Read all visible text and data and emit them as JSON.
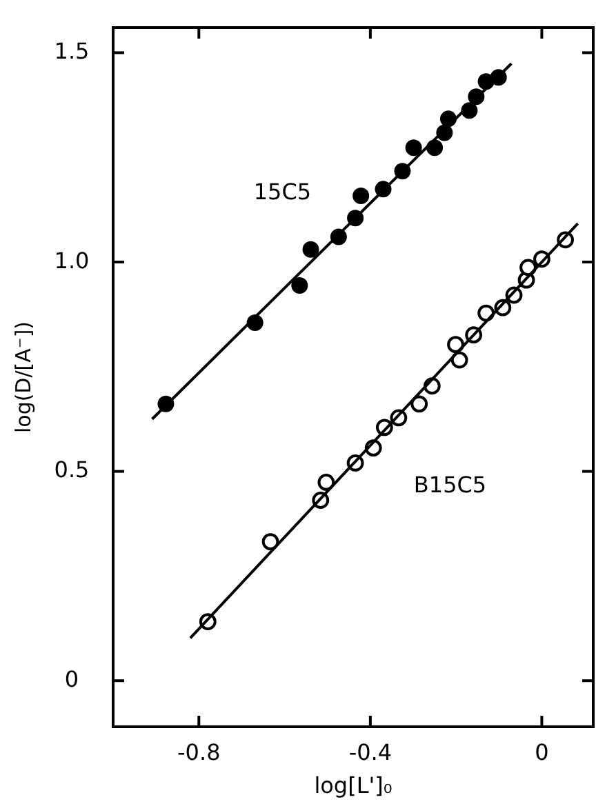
{
  "chart_data": {
    "type": "scatter",
    "xlabel": "log[L']₀",
    "ylabel": "log(D/[A⁻])",
    "xlim": [
      -1.0,
      0.12
    ],
    "ylim": [
      -0.11,
      1.56
    ],
    "xticks": [
      -0.8,
      -0.4,
      0
    ],
    "yticks": [
      0,
      0.5,
      {
        "value": 1,
        "label": "1.0"
      },
      1.5
    ],
    "grid": false,
    "series": [
      {
        "name": "15C5",
        "color": "#000000",
        "marker": "circle",
        "x": [
          -0.877,
          -0.669,
          -0.565,
          -0.539,
          -0.474,
          -0.435,
          -0.422,
          -0.37,
          -0.325,
          -0.299,
          -0.25,
          -0.227,
          -0.218,
          -0.169,
          -0.153,
          -0.13,
          -0.101
        ],
        "values": [
          0.661,
          0.855,
          0.944,
          1.03,
          1.06,
          1.105,
          1.158,
          1.174,
          1.217,
          1.273,
          1.273,
          1.309,
          1.342,
          1.362,
          1.395,
          1.431,
          1.441
        ]
      },
      {
        "name": "B15C5",
        "color": "#000000",
        "marker": "circle",
        "x": [
          -0.779,
          -0.633,
          -0.516,
          -0.503,
          -0.435,
          -0.393,
          -0.367,
          -0.334,
          -0.286,
          -0.256,
          -0.201,
          -0.192,
          -0.159,
          -0.13,
          -0.091,
          -0.065,
          -0.036,
          -0.032,
          0.0,
          0.055
        ],
        "values": [
          0.141,
          0.332,
          0.431,
          0.474,
          0.52,
          0.556,
          0.605,
          0.628,
          0.661,
          0.704,
          0.803,
          0.766,
          0.826,
          0.878,
          0.891,
          0.921,
          0.957,
          0.987,
          1.007,
          1.053
        ]
      },
      {
        "type": "line",
        "color": "#000000",
        "line_style": "solid",
        "x": [
          -0.909,
          -0.071
        ],
        "values": [
          0.625,
          1.474
        ]
      },
      {
        "type": "line",
        "color": "#000000",
        "line_style": "solid",
        "x": [
          -0.82,
          0.084
        ],
        "values": [
          0.102,
          1.092
        ]
      }
    ]
  }
}
